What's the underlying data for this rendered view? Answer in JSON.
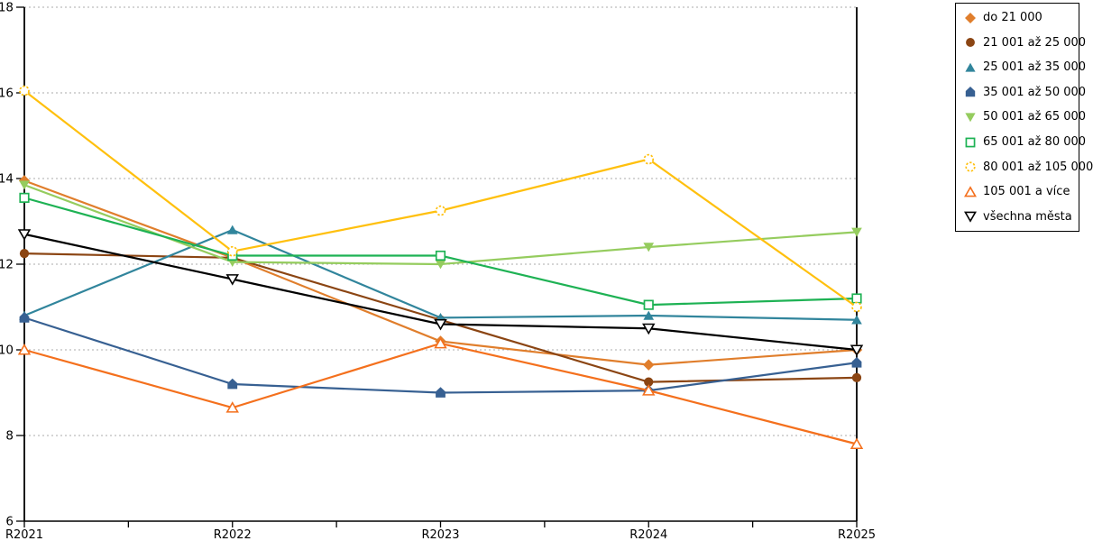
{
  "chart_data": {
    "type": "line",
    "title": "",
    "xlabel": "",
    "ylabel": "",
    "categories": [
      "R2021",
      "R2022",
      "R2023",
      "R2024",
      "R2025"
    ],
    "y_axis": {
      "min": 6,
      "max": 18,
      "tick_step": 2,
      "ticks": [
        6,
        8,
        10,
        12,
        14,
        16,
        18
      ],
      "grid": "dashed-horizontal"
    },
    "legend_position": "right-outside",
    "series": [
      {
        "name": "do 21 000",
        "color": "#E07E2C",
        "marker": "diamond",
        "marker_fill": "solid",
        "values": [
          13.95,
          12.15,
          10.2,
          9.65,
          10.0
        ]
      },
      {
        "name": "21 001 až 25 000",
        "color": "#8B4513",
        "marker": "circle",
        "marker_fill": "solid",
        "values": [
          12.25,
          12.15,
          10.7,
          9.25,
          9.35
        ]
      },
      {
        "name": "25 001 až 35 000",
        "color": "#31859C",
        "marker": "triangle-up",
        "marker_fill": "solid",
        "values": [
          10.8,
          12.8,
          10.75,
          10.8,
          10.7
        ]
      },
      {
        "name": "35 001 až 50 000",
        "color": "#376092",
        "marker": "pentagon-up",
        "marker_fill": "solid",
        "values": [
          10.75,
          9.2,
          9.0,
          9.05,
          9.7
        ]
      },
      {
        "name": "50 001 až 65 000",
        "color": "#95CC5E",
        "marker": "triangle-down",
        "marker_fill": "solid",
        "values": [
          13.85,
          12.05,
          12.0,
          12.4,
          12.75
        ]
      },
      {
        "name": "65 001 až 80 000",
        "color": "#1EB254",
        "marker": "square",
        "marker_fill": "open",
        "values": [
          13.55,
          12.2,
          12.2,
          11.05,
          11.2
        ]
      },
      {
        "name": "80 001 až 105 000",
        "color": "#FFC00E",
        "marker": "circle-dashed",
        "marker_fill": "open",
        "values": [
          16.05,
          12.3,
          13.25,
          14.45,
          11.0
        ]
      },
      {
        "name": "105 001 a více",
        "color": "#F4701D",
        "marker": "triangle-up",
        "marker_fill": "open",
        "values": [
          10.0,
          8.65,
          10.15,
          9.05,
          7.8
        ]
      },
      {
        "name": "všechna města",
        "color": "#000000",
        "marker": "triangle-down",
        "marker_fill": "open",
        "values": [
          12.7,
          11.65,
          10.6,
          10.5,
          10.0
        ]
      }
    ],
    "colors": {
      "background": "#FFFFFF",
      "axis": "#000000",
      "gridline": "#ABABAB",
      "tick_label": "#000000"
    }
  }
}
